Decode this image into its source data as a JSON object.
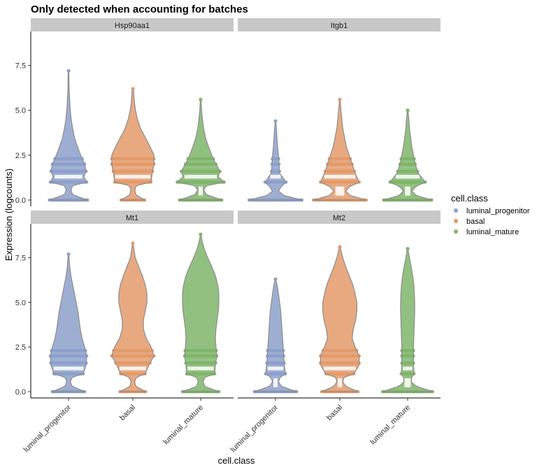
{
  "chart_data": {
    "type": "violin",
    "title": "Only detected when accounting for batches",
    "xlabel": "cell.class",
    "ylabel": "Expression (logcounts)",
    "categories": [
      "luminal_progenitor",
      "basal",
      "luminal_mature"
    ],
    "yticks": [
      0.0,
      2.5,
      5.0,
      7.5
    ],
    "ytick_labels": [
      "0.0",
      "2.5",
      "5.0",
      "7.5"
    ],
    "ylim": [
      0,
      9.2
    ],
    "grid": false,
    "legend": {
      "title": "cell.class",
      "placement": "right",
      "entries": [
        {
          "label": "luminal_progenitor",
          "color": "#8da0cb"
        },
        {
          "label": "basal",
          "color": "#e49a6a"
        },
        {
          "label": "luminal_mature",
          "color": "#7fb56a"
        }
      ]
    },
    "outline_color": "#8c8c8c",
    "panels": [
      {
        "gene": "Hsp90aa1",
        "groups": [
          {
            "class": "luminal_progenitor",
            "max": 7.2,
            "profile": [
              [
                0,
                0.65
              ],
              [
                0.3,
                0.14
              ],
              [
                0.55,
                0.08
              ],
              [
                0.8,
                0.14
              ],
              [
                1,
                0.62
              ],
              [
                1.3,
                0.52
              ],
              [
                1.6,
                0.6
              ],
              [
                2,
                0.55
              ],
              [
                2.4,
                0.44
              ],
              [
                3,
                0.3
              ],
              [
                3.5,
                0.2
              ],
              [
                4,
                0.14
              ],
              [
                4.5,
                0.09
              ],
              [
                5,
                0.06
              ],
              [
                5.5,
                0.04
              ],
              [
                6.2,
                0.02
              ],
              [
                7.2,
                0.01
              ]
            ]
          },
          {
            "class": "basal",
            "max": 6.2,
            "profile": [
              [
                0,
                0.4
              ],
              [
                0.3,
                0.1
              ],
              [
                0.55,
                0.07
              ],
              [
                0.8,
                0.11
              ],
              [
                1,
                0.62
              ],
              [
                1.5,
                0.66
              ],
              [
                2,
                0.72
              ],
              [
                2.5,
                0.72
              ],
              [
                3,
                0.58
              ],
              [
                3.5,
                0.42
              ],
              [
                4,
                0.26
              ],
              [
                4.5,
                0.16
              ],
              [
                5,
                0.09
              ],
              [
                5.5,
                0.05
              ],
              [
                6.2,
                0.02
              ]
            ]
          },
          {
            "class": "luminal_mature",
            "max": 5.6,
            "profile": [
              [
                0,
                0.72
              ],
              [
                0.3,
                0.2
              ],
              [
                0.55,
                0.1
              ],
              [
                0.8,
                0.2
              ],
              [
                1,
                0.8
              ],
              [
                1.3,
                0.6
              ],
              [
                1.6,
                0.66
              ],
              [
                2,
                0.52
              ],
              [
                2.4,
                0.4
              ],
              [
                3,
                0.26
              ],
              [
                3.5,
                0.16
              ],
              [
                4,
                0.1
              ],
              [
                4.5,
                0.06
              ],
              [
                5,
                0.03
              ],
              [
                5.6,
                0.01
              ]
            ]
          }
        ]
      },
      {
        "gene": "Itgb1",
        "groups": [
          {
            "class": "luminal_progenitor",
            "max": 4.4,
            "profile": [
              [
                0,
                0.9
              ],
              [
                0.25,
                0.3
              ],
              [
                0.5,
                0.1
              ],
              [
                0.75,
                0.2
              ],
              [
                1,
                0.36
              ],
              [
                1.5,
                0.14
              ],
              [
                2,
                0.12
              ],
              [
                2.5,
                0.1
              ],
              [
                3,
                0.07
              ],
              [
                3.5,
                0.05
              ],
              [
                4,
                0.03
              ],
              [
                4.4,
                0.01
              ]
            ]
          },
          {
            "class": "basal",
            "max": 5.6,
            "profile": [
              [
                0,
                0.9
              ],
              [
                0.25,
                0.36
              ],
              [
                0.5,
                0.2
              ],
              [
                0.75,
                0.34
              ],
              [
                1,
                0.66
              ],
              [
                1.5,
                0.52
              ],
              [
                2,
                0.42
              ],
              [
                2.5,
                0.32
              ],
              [
                3,
                0.22
              ],
              [
                3.5,
                0.16
              ],
              [
                4,
                0.1
              ],
              [
                4.5,
                0.07
              ],
              [
                5,
                0.04
              ],
              [
                5.6,
                0.01
              ]
            ]
          },
          {
            "class": "luminal_mature",
            "max": 5.0,
            "profile": [
              [
                0,
                0.82
              ],
              [
                0.25,
                0.3
              ],
              [
                0.5,
                0.14
              ],
              [
                0.75,
                0.28
              ],
              [
                1,
                0.6
              ],
              [
                1.5,
                0.36
              ],
              [
                2,
                0.26
              ],
              [
                2.5,
                0.2
              ],
              [
                3,
                0.14
              ],
              [
                3.5,
                0.1
              ],
              [
                4,
                0.06
              ],
              [
                4.5,
                0.04
              ],
              [
                5,
                0.01
              ]
            ]
          }
        ]
      },
      {
        "gene": "Mt1",
        "groups": [
          {
            "class": "luminal_progenitor",
            "max": 7.7,
            "profile": [
              [
                0,
                0.55
              ],
              [
                0.3,
                0.12
              ],
              [
                0.55,
                0.06
              ],
              [
                0.8,
                0.12
              ],
              [
                1,
                0.5
              ],
              [
                1.5,
                0.6
              ],
              [
                2,
                0.62
              ],
              [
                2.5,
                0.55
              ],
              [
                3,
                0.46
              ],
              [
                3.5,
                0.4
              ],
              [
                4,
                0.36
              ],
              [
                4.5,
                0.32
              ],
              [
                5,
                0.26
              ],
              [
                5.5,
                0.2
              ],
              [
                6,
                0.14
              ],
              [
                6.5,
                0.08
              ],
              [
                7,
                0.04
              ],
              [
                7.7,
                0.01
              ]
            ]
          },
          {
            "class": "basal",
            "max": 8.3,
            "profile": [
              [
                0,
                0.44
              ],
              [
                0.3,
                0.1
              ],
              [
                0.55,
                0.06
              ],
              [
                0.8,
                0.12
              ],
              [
                1,
                0.42
              ],
              [
                1.5,
                0.55
              ],
              [
                2,
                0.72
              ],
              [
                2.5,
                0.62
              ],
              [
                3,
                0.45
              ],
              [
                3.5,
                0.36
              ],
              [
                4,
                0.36
              ],
              [
                4.5,
                0.42
              ],
              [
                5,
                0.48
              ],
              [
                5.5,
                0.48
              ],
              [
                6,
                0.42
              ],
              [
                6.5,
                0.32
              ],
              [
                7,
                0.2
              ],
              [
                7.5,
                0.08
              ],
              [
                8.3,
                0.01
              ]
            ]
          },
          {
            "class": "luminal_mature",
            "max": 8.8,
            "profile": [
              [
                0,
                0.62
              ],
              [
                0.3,
                0.14
              ],
              [
                0.55,
                0.08
              ],
              [
                0.8,
                0.14
              ],
              [
                1,
                0.48
              ],
              [
                1.5,
                0.5
              ],
              [
                2,
                0.55
              ],
              [
                2.5,
                0.52
              ],
              [
                3,
                0.5
              ],
              [
                3.5,
                0.52
              ],
              [
                4,
                0.56
              ],
              [
                4.5,
                0.6
              ],
              [
                5,
                0.62
              ],
              [
                5.5,
                0.62
              ],
              [
                6,
                0.58
              ],
              [
                6.5,
                0.5
              ],
              [
                7,
                0.38
              ],
              [
                7.5,
                0.24
              ],
              [
                8,
                0.12
              ],
              [
                8.4,
                0.05
              ],
              [
                8.8,
                0.01
              ]
            ]
          }
        ]
      },
      {
        "gene": "Mt2",
        "groups": [
          {
            "class": "luminal_progenitor",
            "max": 6.3,
            "profile": [
              [
                0,
                0.72
              ],
              [
                0.3,
                0.2
              ],
              [
                0.55,
                0.1
              ],
              [
                0.8,
                0.16
              ],
              [
                1,
                0.34
              ],
              [
                1.5,
                0.3
              ],
              [
                2,
                0.28
              ],
              [
                2.5,
                0.26
              ],
              [
                3,
                0.24
              ],
              [
                3.5,
                0.22
              ],
              [
                4,
                0.2
              ],
              [
                4.5,
                0.18
              ],
              [
                5,
                0.14
              ],
              [
                5.5,
                0.1
              ],
              [
                6,
                0.05
              ],
              [
                6.3,
                0.01
              ]
            ]
          },
          {
            "class": "basal",
            "max": 8.1,
            "profile": [
              [
                0,
                0.62
              ],
              [
                0.3,
                0.2
              ],
              [
                0.55,
                0.1
              ],
              [
                0.8,
                0.14
              ],
              [
                1,
                0.48
              ],
              [
                1.5,
                0.66
              ],
              [
                2,
                0.66
              ],
              [
                2.5,
                0.52
              ],
              [
                3,
                0.42
              ],
              [
                3.5,
                0.46
              ],
              [
                4,
                0.54
              ],
              [
                4.5,
                0.58
              ],
              [
                5,
                0.58
              ],
              [
                5.5,
                0.52
              ],
              [
                6,
                0.44
              ],
              [
                6.5,
                0.32
              ],
              [
                7,
                0.2
              ],
              [
                7.5,
                0.1
              ],
              [
                8.1,
                0.01
              ]
            ]
          },
          {
            "class": "luminal_mature",
            "max": 8.0,
            "profile": [
              [
                0,
                0.85
              ],
              [
                0.3,
                0.3
              ],
              [
                0.55,
                0.12
              ],
              [
                0.8,
                0.14
              ],
              [
                1,
                0.22
              ],
              [
                1.5,
                0.2
              ],
              [
                2,
                0.2
              ],
              [
                2.5,
                0.2
              ],
              [
                3,
                0.21
              ],
              [
                3.5,
                0.22
              ],
              [
                4,
                0.23
              ],
              [
                4.5,
                0.24
              ],
              [
                5,
                0.24
              ],
              [
                5.5,
                0.23
              ],
              [
                6,
                0.21
              ],
              [
                6.5,
                0.17
              ],
              [
                7,
                0.12
              ],
              [
                7.5,
                0.06
              ],
              [
                8,
                0.01
              ]
            ]
          }
        ]
      }
    ]
  }
}
